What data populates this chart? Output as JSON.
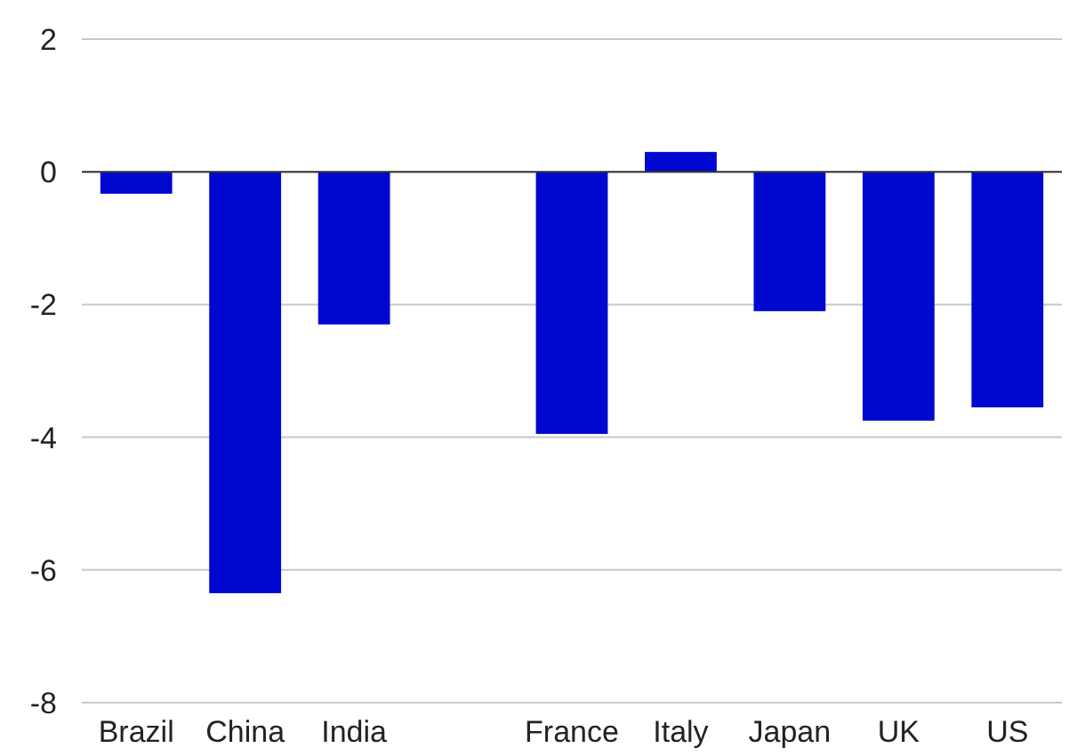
{
  "chart_data": {
    "type": "bar",
    "categories": [
      "Brazil",
      "China",
      "India",
      null,
      "France",
      "Italy",
      "Japan",
      "UK",
      "US"
    ],
    "values": [
      -0.33,
      -6.35,
      -2.3,
      null,
      -3.95,
      0.3,
      -2.1,
      -3.75,
      -3.55
    ],
    "color": "#0008d0",
    "ylim": [
      -8,
      2
    ],
    "yticks": [
      -8,
      -6,
      -4,
      -2,
      0,
      2
    ],
    "grid": "y"
  }
}
